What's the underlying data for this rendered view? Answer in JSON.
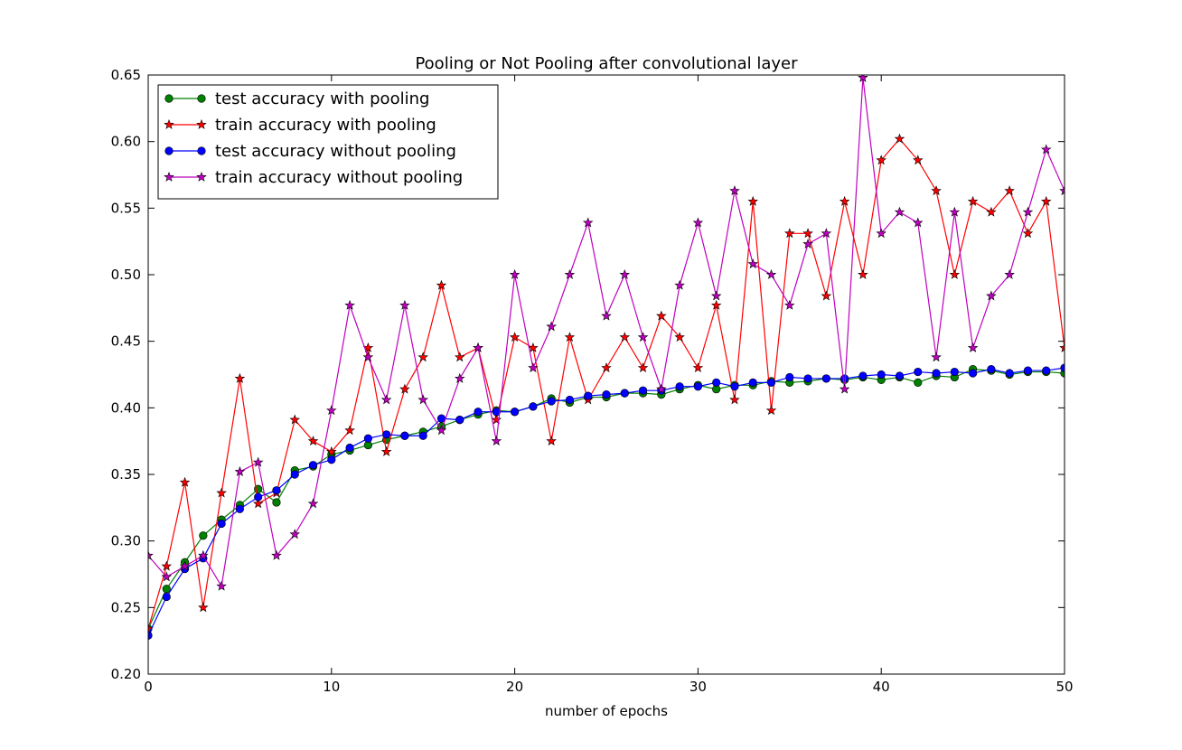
{
  "chart_data": {
    "type": "line",
    "title": "Pooling or Not Pooling after convolutional layer",
    "xlabel": "number of epochs",
    "ylabel": "",
    "xlim": [
      0,
      50
    ],
    "ylim": [
      0.2,
      0.65
    ],
    "xticks": [
      0,
      10,
      20,
      30,
      40,
      50
    ],
    "xtick_labels": [
      "0",
      "10",
      "20",
      "30",
      "40",
      "50"
    ],
    "yticks": [
      0.2,
      0.25,
      0.3,
      0.35,
      0.4,
      0.45,
      0.5,
      0.55,
      0.6,
      0.65
    ],
    "ytick_labels": [
      "0.20",
      "0.25",
      "0.30",
      "0.35",
      "0.40",
      "0.45",
      "0.50",
      "0.55",
      "0.60",
      "0.65"
    ],
    "grid": false,
    "legend_position": "top-left",
    "x": [
      0,
      1,
      2,
      3,
      4,
      5,
      6,
      7,
      8,
      9,
      10,
      11,
      12,
      13,
      14,
      15,
      16,
      17,
      18,
      19,
      20,
      21,
      22,
      23,
      24,
      25,
      26,
      27,
      28,
      29,
      30,
      31,
      32,
      33,
      34,
      35,
      36,
      37,
      38,
      39,
      40,
      41,
      42,
      43,
      44,
      45,
      46,
      47,
      48,
      49,
      50
    ],
    "series": [
      {
        "name": "test accuracy with pooling",
        "color": "#008000",
        "marker": "circle",
        "values": [
          0.234,
          0.264,
          0.284,
          0.304,
          0.316,
          0.327,
          0.339,
          0.329,
          0.353,
          0.356,
          0.365,
          0.368,
          0.372,
          0.376,
          0.379,
          0.382,
          0.386,
          0.391,
          0.395,
          0.398,
          0.397,
          0.401,
          0.407,
          0.404,
          0.408,
          0.408,
          0.411,
          0.411,
          0.41,
          0.414,
          0.417,
          0.414,
          0.417,
          0.417,
          0.42,
          0.419,
          0.42,
          0.422,
          0.421,
          0.423,
          0.421,
          0.423,
          0.419,
          0.424,
          0.423,
          0.429,
          0.428,
          0.425,
          0.427,
          0.427,
          0.426
        ]
      },
      {
        "name": "train accuracy with pooling",
        "color": "#ff0000",
        "marker": "star",
        "values": [
          0.234,
          0.281,
          0.344,
          0.25,
          0.336,
          0.422,
          0.328,
          0.336,
          0.391,
          0.375,
          0.367,
          0.383,
          0.445,
          0.367,
          0.414,
          0.438,
          0.492,
          0.438,
          0.445,
          0.391,
          0.453,
          0.445,
          0.375,
          0.453,
          0.406,
          0.43,
          0.453,
          0.43,
          0.469,
          0.453,
          0.43,
          0.477,
          0.406,
          0.555,
          0.398,
          0.531,
          0.531,
          0.484,
          0.555,
          0.5,
          0.586,
          0.602,
          0.586,
          0.563,
          0.5,
          0.555,
          0.547,
          0.563,
          0.531,
          0.555,
          0.445
        ]
      },
      {
        "name": "test accuracy without pooling",
        "color": "#0000ff",
        "marker": "circle",
        "values": [
          0.229,
          0.258,
          0.279,
          0.287,
          0.313,
          0.324,
          0.333,
          0.338,
          0.35,
          0.357,
          0.361,
          0.37,
          0.377,
          0.38,
          0.379,
          0.379,
          0.392,
          0.391,
          0.397,
          0.397,
          0.397,
          0.401,
          0.405,
          0.406,
          0.409,
          0.41,
          0.411,
          0.413,
          0.413,
          0.416,
          0.416,
          0.419,
          0.416,
          0.419,
          0.419,
          0.423,
          0.422,
          0.422,
          0.422,
          0.424,
          0.425,
          0.424,
          0.427,
          0.426,
          0.427,
          0.426,
          0.429,
          0.426,
          0.428,
          0.428,
          0.43
        ]
      },
      {
        "name": "train accuracy without pooling",
        "color": "#bf00bf",
        "marker": "star",
        "values": [
          0.289,
          0.273,
          0.281,
          0.289,
          0.266,
          0.352,
          0.359,
          0.289,
          0.305,
          0.328,
          0.398,
          0.477,
          0.438,
          0.406,
          0.477,
          0.406,
          0.383,
          0.422,
          0.445,
          0.375,
          0.5,
          0.43,
          0.461,
          0.5,
          0.539,
          0.469,
          0.5,
          0.453,
          0.414,
          0.492,
          0.539,
          0.484,
          0.563,
          0.508,
          0.5,
          0.477,
          0.523,
          0.531,
          0.414,
          0.648,
          0.531,
          0.547,
          0.539,
          0.438,
          0.547,
          0.445,
          0.484,
          0.5,
          0.547,
          0.594,
          0.563
        ]
      }
    ]
  }
}
